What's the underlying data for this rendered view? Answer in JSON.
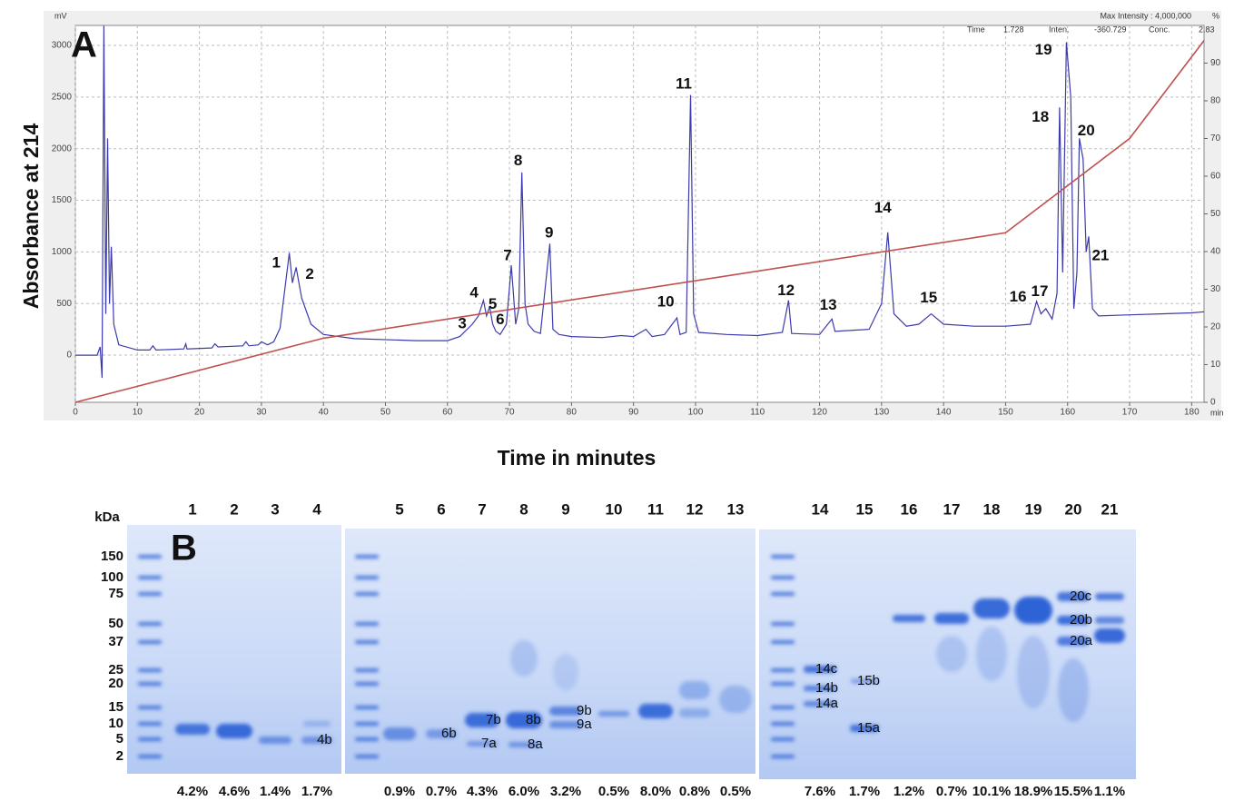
{
  "chart_data": {
    "type": "line",
    "panel_label": "A",
    "y_label": "Absorbance at 214",
    "x_label": "Time in minutes",
    "x_unit": "min",
    "y_unit": "mV",
    "y2_unit": "%",
    "header": {
      "max_intensity": "Max Intensity : 4,000,000",
      "time_label": "Time",
      "time_value": "1.728",
      "inten_label": "Inten.",
      "inten_value": "-360.729",
      "conc_label": "Conc.",
      "conc_value": "2.83"
    },
    "xlim": [
      0,
      182
    ],
    "xticks": [
      0,
      10,
      20,
      30,
      40,
      50,
      60,
      70,
      80,
      90,
      100,
      110,
      120,
      130,
      140,
      150,
      160,
      170,
      180
    ],
    "ylim": [
      -457,
      3194
    ],
    "yticks": [
      0,
      500,
      1000,
      1500,
      2000,
      2500,
      3000
    ],
    "y2lim": [
      0,
      100
    ],
    "y2ticks": [
      0,
      10,
      20,
      30,
      40,
      50,
      60,
      70,
      80,
      90
    ],
    "grid": true,
    "series": [
      {
        "color": "#3b3bab",
        "x": [
          0,
          3.5,
          4,
          4.3,
          4.6,
          4.9,
          5.2,
          5.5,
          5.8,
          6.2,
          7,
          10,
          12,
          12.5,
          13,
          17.5,
          17.8,
          18,
          22,
          22.5,
          23,
          27,
          27.5,
          28,
          29.5,
          30,
          31,
          32,
          33,
          34.5,
          35,
          35.6,
          36.5,
          38,
          40,
          45,
          55,
          60,
          62,
          64,
          65,
          65.8,
          66.3,
          66.8,
          67.3,
          67.8,
          68.5,
          69.5,
          70.3,
          71,
          71.5,
          72,
          72.5,
          73,
          74,
          75,
          76.5,
          77,
          78,
          80,
          85,
          88,
          90,
          92,
          93,
          95,
          97,
          97.5,
          98.5,
          99.2,
          99.7,
          100.5,
          105,
          110,
          114,
          115,
          115.5,
          120,
          122,
          122.5,
          128,
          130,
          131,
          132,
          134,
          136,
          138,
          140,
          145,
          150,
          154,
          155,
          155.7,
          156.5,
          157.5,
          158.3,
          158.7,
          159.2,
          159.8,
          160.5,
          161,
          161.5,
          161.9,
          162.5,
          163,
          163.4,
          164,
          165,
          170,
          175,
          180,
          182
        ],
        "values": [
          0,
          0,
          80,
          -220,
          3190,
          400,
          2100,
          500,
          1050,
          300,
          100,
          50,
          50,
          90,
          50,
          60,
          110,
          60,
          70,
          110,
          80,
          90,
          130,
          90,
          100,
          130,
          100,
          130,
          260,
          990,
          700,
          850,
          550,
          300,
          200,
          160,
          140,
          140,
          180,
          300,
          380,
          530,
          380,
          470,
          300,
          230,
          200,
          300,
          870,
          300,
          450,
          1770,
          500,
          300,
          230,
          210,
          1080,
          250,
          200,
          180,
          170,
          190,
          180,
          250,
          180,
          200,
          360,
          200,
          220,
          2520,
          400,
          220,
          200,
          190,
          220,
          530,
          210,
          200,
          350,
          230,
          250,
          500,
          1190,
          400,
          280,
          300,
          400,
          300,
          280,
          280,
          300,
          520,
          400,
          450,
          350,
          600,
          2400,
          800,
          3030,
          2500,
          450,
          800,
          2100,
          1900,
          1000,
          1150,
          450,
          380,
          390,
          400,
          410,
          420
        ]
      },
      {
        "color": "#c0504d",
        "axis": "y2",
        "x": [
          0,
          40,
          150,
          170,
          182
        ],
        "values": [
          0,
          17,
          45,
          70,
          96
        ]
      }
    ],
    "annotations": [
      {
        "text": "1",
        "x": 32.4,
        "y": 890
      },
      {
        "text": "2",
        "x": 37.8,
        "y": 780
      },
      {
        "text": "3",
        "x": 62.4,
        "y": 300
      },
      {
        "text": "4",
        "x": 64.3,
        "y": 600
      },
      {
        "text": "5",
        "x": 67.3,
        "y": 490
      },
      {
        "text": "6",
        "x": 68.5,
        "y": 340
      },
      {
        "text": "7",
        "x": 69.7,
        "y": 960
      },
      {
        "text": "8",
        "x": 71.4,
        "y": 1880
      },
      {
        "text": "9",
        "x": 76.4,
        "y": 1180
      },
      {
        "text": "10",
        "x": 95.2,
        "y": 510
      },
      {
        "text": "11",
        "x": 98.1,
        "y": 2620
      },
      {
        "text": "12",
        "x": 114.6,
        "y": 620
      },
      {
        "text": "13",
        "x": 121.4,
        "y": 480
      },
      {
        "text": "14",
        "x": 130.2,
        "y": 1420
      },
      {
        "text": "15",
        "x": 137.6,
        "y": 550
      },
      {
        "text": "16",
        "x": 152,
        "y": 560
      },
      {
        "text": "17",
        "x": 155.5,
        "y": 610
      },
      {
        "text": "18",
        "x": 155.6,
        "y": 2300
      },
      {
        "text": "19",
        "x": 156.1,
        "y": 2950
      },
      {
        "text": "20",
        "x": 163,
        "y": 2170
      },
      {
        "text": "21",
        "x": 165.3,
        "y": 960
      }
    ]
  },
  "gel": {
    "panel_label": "B",
    "kda_label": "kDa",
    "kda_markers": [
      "150",
      "100",
      "75",
      "50",
      "37",
      "25",
      "20",
      "15",
      "10",
      "5",
      "2"
    ],
    "lanes": [
      "1",
      "2",
      "3",
      "4",
      "5",
      "6",
      "7",
      "8",
      "9",
      "10",
      "11",
      "12",
      "13",
      "14",
      "15",
      "16",
      "17",
      "18",
      "19",
      "20",
      "21"
    ],
    "percentages": [
      "4.2%",
      "4.6%",
      "1.4%",
      "1.7%",
      "0.9%",
      "0.7%",
      "4.3%",
      "6.0%",
      "3.2%",
      "0.5%",
      "8.0%",
      "0.8%",
      "0.5%",
      "7.6%",
      "1.7%",
      "1.2%",
      "0.7%",
      "10.1%",
      "18.9%",
      "15.5%",
      "1.1%"
    ],
    "band_labels": [
      "4b",
      "6b",
      "7b",
      "7a",
      "8b",
      "8a",
      "9b",
      "9a",
      "14c",
      "14b",
      "14a",
      "15b",
      "15a",
      "20c",
      "20b",
      "20a"
    ]
  }
}
